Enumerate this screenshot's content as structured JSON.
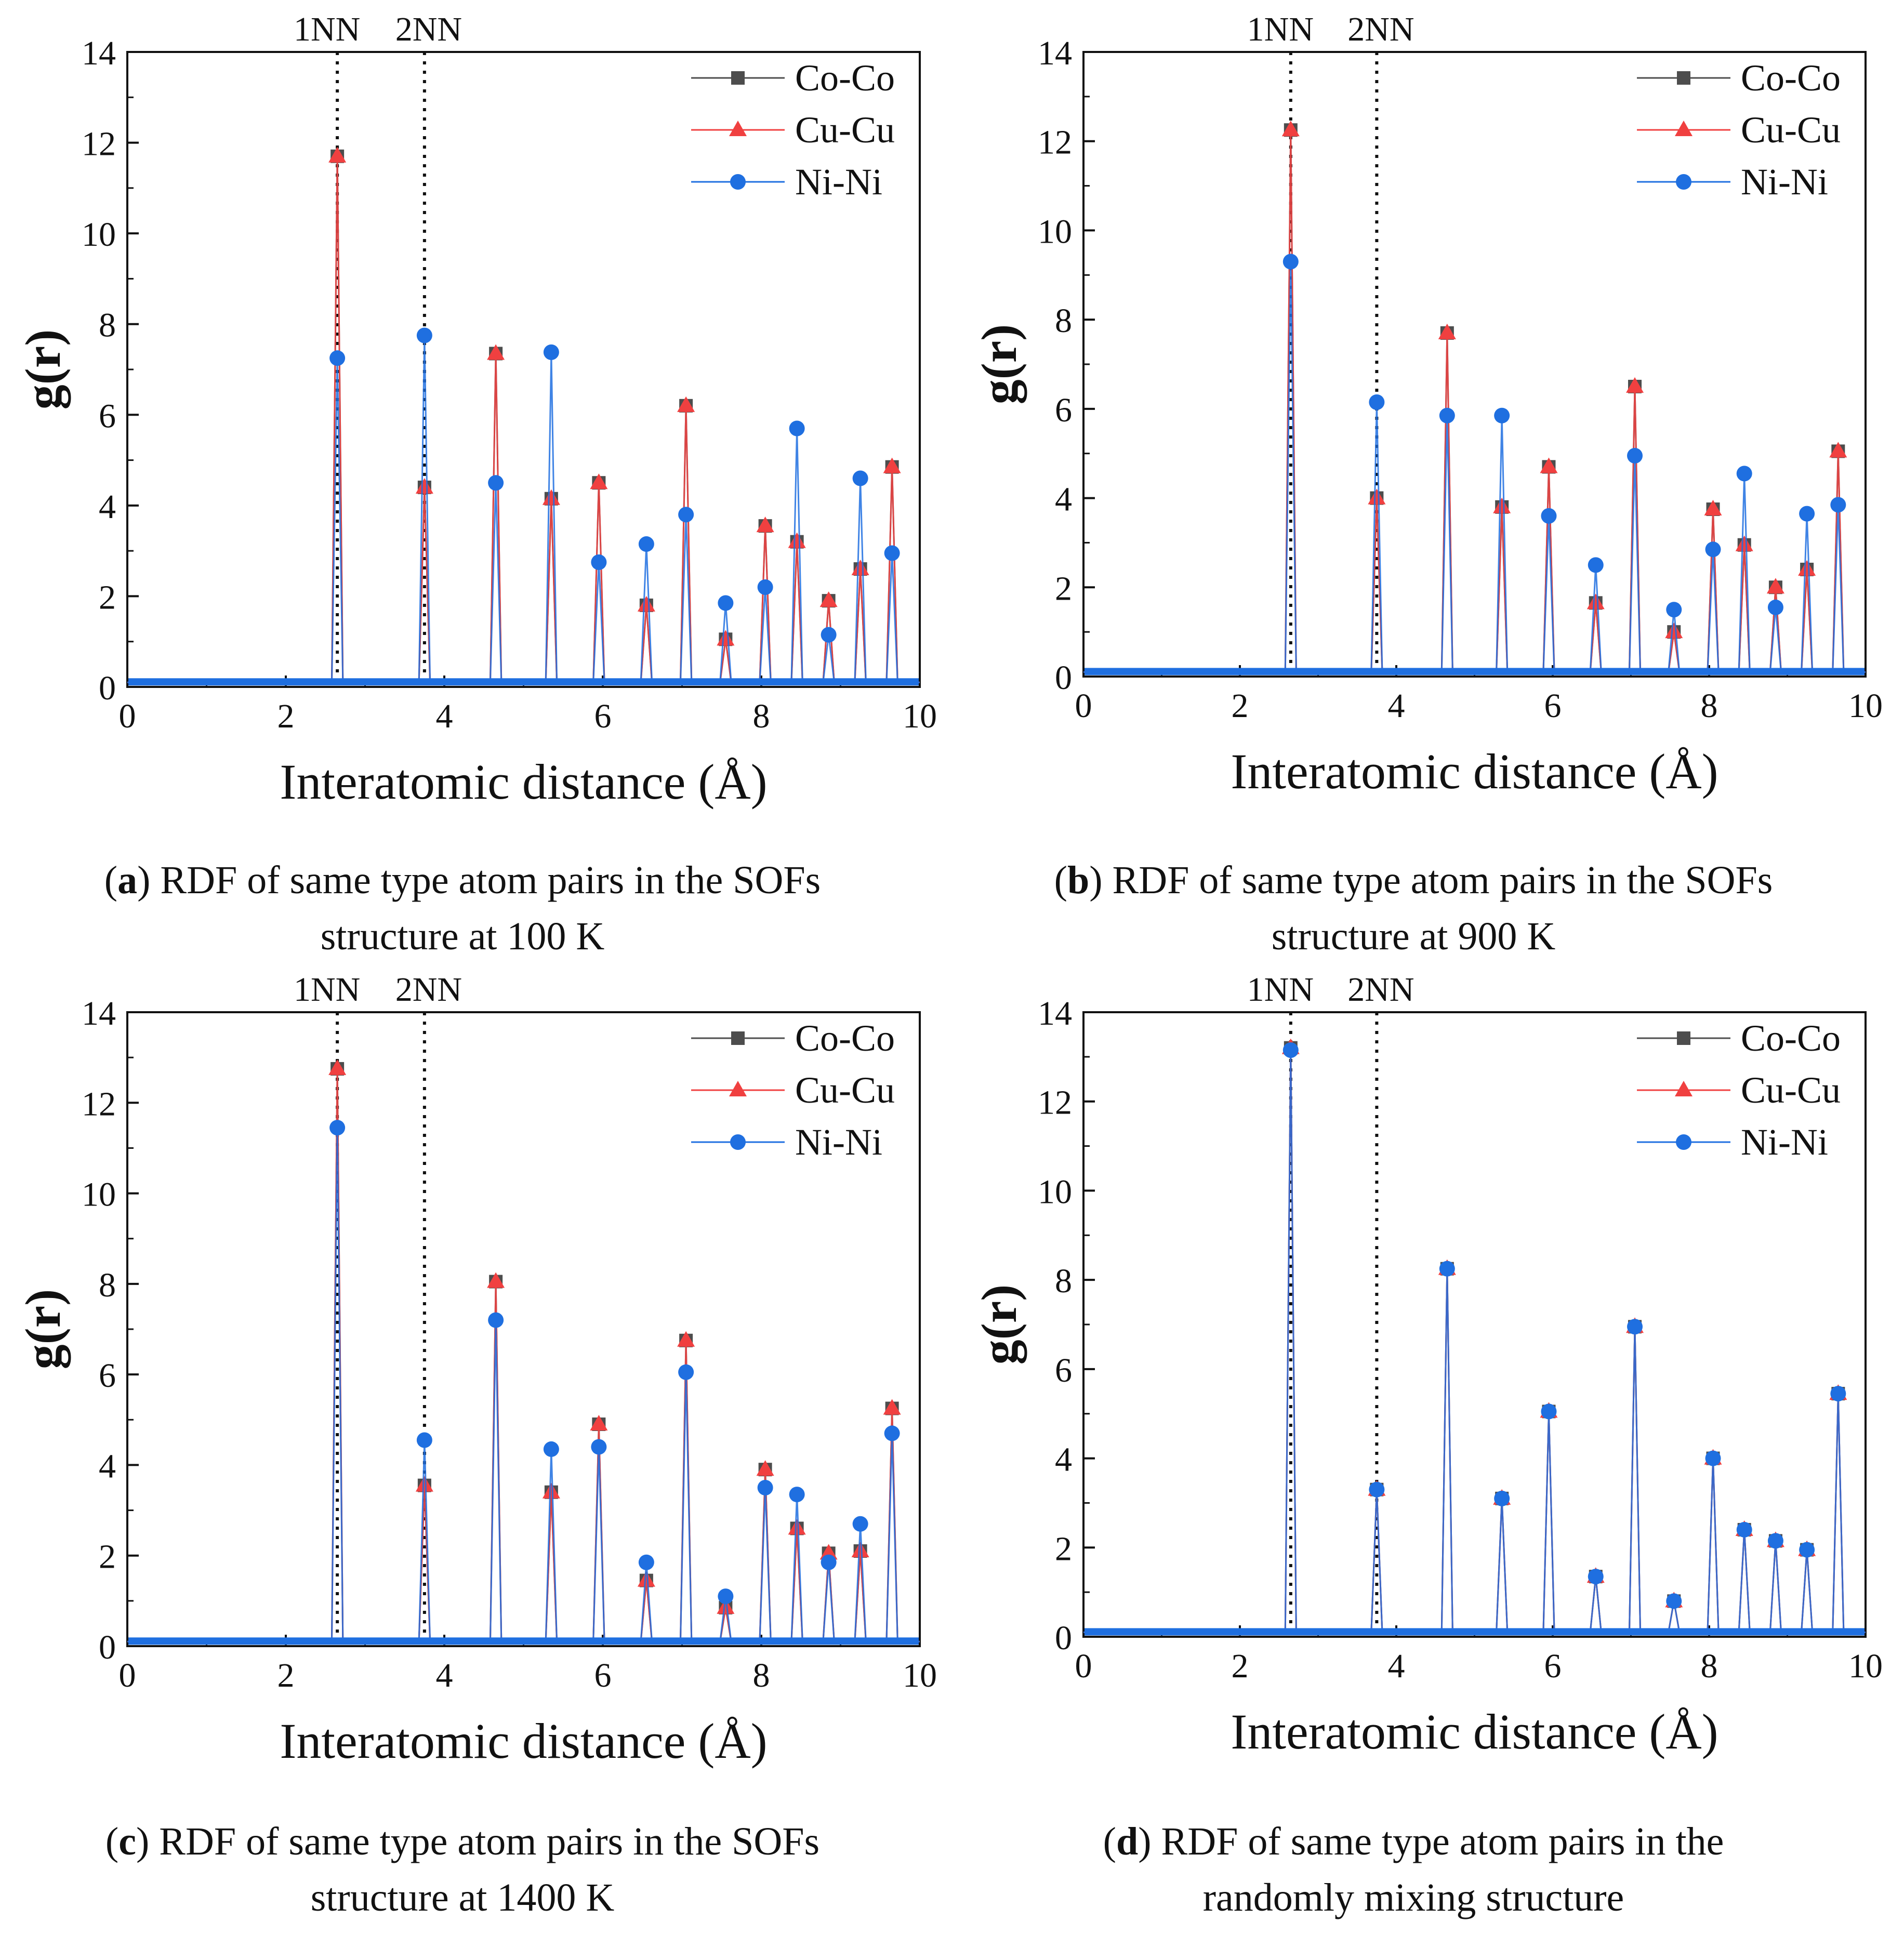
{
  "figure": {
    "panels": [
      {
        "caption_letter": "a",
        "caption_line1": ") RDF of same type atom pairs in the SOFs",
        "caption_line2": "structure at 100 K"
      },
      {
        "caption_letter": "b",
        "caption_line1": ") RDF of same type atom pairs in the SOFs",
        "caption_line2": "structure at 900 K"
      },
      {
        "caption_letter": "c",
        "caption_line1": ") RDF of same type atom pairs in the SOFs",
        "caption_line2": "structure at 1400 K"
      },
      {
        "caption_letter": "d",
        "caption_line1": ") RDF of same type atom pairs in the",
        "caption_line2": "randomly mixing structure"
      }
    ]
  },
  "chart_data": [
    {
      "type": "line",
      "xlabel": "Interatomic distance (Å)",
      "ylabel": "g(r)",
      "xlim": [
        0,
        10
      ],
      "ylim": [
        0,
        14
      ],
      "x_ticks": [
        "0",
        "2",
        "4",
        "6",
        "8",
        "10"
      ],
      "y_ticks": [
        "0",
        "2",
        "4",
        "6",
        "8",
        "10",
        "12",
        "14"
      ],
      "reference_lines": [
        {
          "label": "1NN",
          "x": 2.65
        },
        {
          "label": "2NN",
          "x": 3.75
        }
      ],
      "legend_position": "top-right",
      "x": [
        2.65,
        3.75,
        4.65,
        5.35,
        5.95,
        6.55,
        7.05,
        7.55,
        8.05,
        8.45,
        8.85,
        9.25,
        9.65
      ],
      "series": [
        {
          "name": "Co-Co",
          "color": "#4d4d4d",
          "marker": "square",
          "values": [
            11.7,
            4.4,
            7.35,
            4.15,
            4.5,
            1.8,
            6.2,
            1.05,
            3.55,
            3.2,
            1.9,
            2.6,
            4.85
          ]
        },
        {
          "name": "Cu-Cu",
          "color": "#f04040",
          "marker": "triangle",
          "values": [
            11.7,
            4.4,
            7.35,
            4.15,
            4.5,
            1.8,
            6.2,
            1.05,
            3.55,
            3.2,
            1.9,
            2.6,
            4.85
          ]
        },
        {
          "name": "Ni-Ni",
          "color": "#1f6fe0",
          "marker": "circle",
          "values": [
            7.25,
            7.75,
            4.5,
            7.38,
            2.75,
            3.15,
            3.8,
            1.85,
            2.2,
            5.7,
            1.15,
            4.6,
            2.95
          ]
        }
      ]
    },
    {
      "type": "line",
      "xlabel": "Interatomic distance (Å)",
      "ylabel": "g(r)",
      "xlim": [
        0,
        10
      ],
      "ylim": [
        0,
        14
      ],
      "x_ticks": [
        "0",
        "2",
        "4",
        "6",
        "8",
        "10"
      ],
      "y_ticks": [
        "0",
        "2",
        "4",
        "6",
        "8",
        "10",
        "12",
        "14"
      ],
      "reference_lines": [
        {
          "label": "1NN",
          "x": 2.65
        },
        {
          "label": "2NN",
          "x": 3.75
        }
      ],
      "legend_position": "top-right",
      "x": [
        2.65,
        3.75,
        4.65,
        5.35,
        5.95,
        6.55,
        7.05,
        7.55,
        8.05,
        8.45,
        8.85,
        9.25,
        9.65
      ],
      "series": [
        {
          "name": "Co-Co",
          "color": "#4d4d4d",
          "marker": "square",
          "values": [
            12.25,
            4.0,
            7.7,
            3.8,
            4.7,
            1.65,
            6.5,
            1.0,
            3.75,
            2.95,
            2.0,
            2.4,
            5.05
          ]
        },
        {
          "name": "Cu-Cu",
          "color": "#f04040",
          "marker": "triangle",
          "values": [
            12.25,
            4.0,
            7.7,
            3.8,
            4.7,
            1.65,
            6.5,
            1.0,
            3.75,
            2.95,
            2.0,
            2.4,
            5.05
          ]
        },
        {
          "name": "Ni-Ni",
          "color": "#1f6fe0",
          "marker": "circle",
          "values": [
            9.3,
            6.15,
            5.85,
            5.85,
            3.6,
            2.5,
            4.95,
            1.5,
            2.85,
            4.55,
            1.55,
            3.65,
            3.85
          ]
        }
      ]
    },
    {
      "type": "line",
      "xlabel": "Interatomic distance (Å)",
      "ylabel": "g(r)",
      "xlim": [
        0,
        10
      ],
      "ylim": [
        0,
        14
      ],
      "x_ticks": [
        "0",
        "2",
        "4",
        "6",
        "8",
        "10"
      ],
      "y_ticks": [
        "0",
        "2",
        "4",
        "6",
        "8",
        "10",
        "12",
        "14"
      ],
      "reference_lines": [
        {
          "label": "1NN",
          "x": 2.65
        },
        {
          "label": "2NN",
          "x": 3.75
        }
      ],
      "legend_position": "top-right",
      "x": [
        2.65,
        3.75,
        4.65,
        5.35,
        5.95,
        6.55,
        7.05,
        7.55,
        8.05,
        8.45,
        8.85,
        9.25,
        9.65
      ],
      "series": [
        {
          "name": "Co-Co",
          "color": "#4d4d4d",
          "marker": "square",
          "values": [
            12.75,
            3.55,
            8.05,
            3.4,
            4.9,
            1.45,
            6.75,
            0.85,
            3.9,
            2.6,
            2.05,
            2.1,
            5.25
          ]
        },
        {
          "name": "Cu-Cu",
          "color": "#f04040",
          "marker": "triangle",
          "values": [
            12.75,
            3.55,
            8.05,
            3.4,
            4.9,
            1.45,
            6.75,
            0.85,
            3.9,
            2.6,
            2.05,
            2.1,
            5.25
          ]
        },
        {
          "name": "Ni-Ni",
          "color": "#1f6fe0",
          "marker": "circle",
          "values": [
            11.45,
            4.55,
            7.2,
            4.35,
            4.4,
            1.85,
            6.05,
            1.1,
            3.5,
            3.35,
            1.85,
            2.7,
            4.7
          ]
        }
      ]
    },
    {
      "type": "line",
      "xlabel": "Interatomic distance (Å)",
      "ylabel": "g(r)",
      "xlim": [
        0,
        10
      ],
      "ylim": [
        0,
        14
      ],
      "x_ticks": [
        "0",
        "2",
        "4",
        "6",
        "8",
        "10"
      ],
      "y_ticks": [
        "0",
        "2",
        "4",
        "6",
        "8",
        "10",
        "12",
        "14"
      ],
      "reference_lines": [
        {
          "label": "1NN",
          "x": 2.65
        },
        {
          "label": "2NN",
          "x": 3.75
        }
      ],
      "legend_position": "top-right",
      "x": [
        2.65,
        3.75,
        4.65,
        5.35,
        5.95,
        6.55,
        7.05,
        7.55,
        8.05,
        8.45,
        8.85,
        9.25,
        9.65
      ],
      "series": [
        {
          "name": "Co-Co",
          "color": "#4d4d4d",
          "marker": "square",
          "values": [
            13.2,
            3.3,
            8.25,
            3.1,
            5.05,
            1.35,
            6.95,
            0.8,
            4.0,
            2.4,
            2.15,
            1.95,
            5.45
          ]
        },
        {
          "name": "Cu-Cu",
          "color": "#f04040",
          "marker": "triangle",
          "values": [
            13.2,
            3.3,
            8.25,
            3.1,
            5.05,
            1.35,
            6.95,
            0.8,
            4.0,
            2.4,
            2.15,
            1.95,
            5.45
          ]
        },
        {
          "name": "Ni-Ni",
          "color": "#1f6fe0",
          "marker": "circle",
          "values": [
            13.15,
            3.3,
            8.25,
            3.1,
            5.05,
            1.35,
            6.95,
            0.8,
            4.0,
            2.4,
            2.15,
            1.95,
            5.45
          ]
        }
      ]
    }
  ]
}
